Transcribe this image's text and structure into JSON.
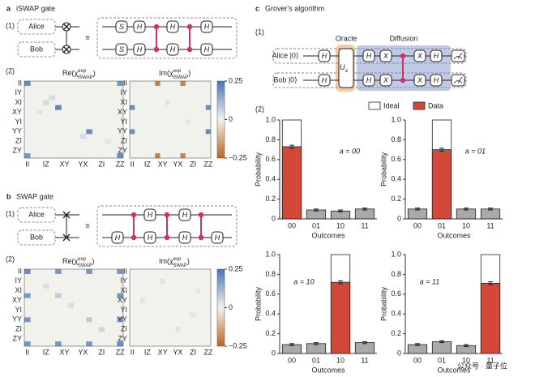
{
  "panels": [
    {
      "label": "a",
      "title": "iSWAP gate",
      "circuit": {
        "step": "(1)",
        "qubits": [
          "Alice",
          "Bob"
        ],
        "equiv": "≡",
        "top_gates": [
          "S",
          "H",
          "H",
          "H"
        ],
        "bottom_gates": [
          "S",
          "H",
          "H",
          "H"
        ]
      },
      "step2": "(2)",
      "colorbar": {
        "lim": [
          -0.25,
          0.25
        ],
        "ticks": [
          0.25,
          0,
          {
            "value": -0.25,
            "label": "−0.25"
          }
        ],
        "colors": [
          "#b8651f",
          "#f2f2ec",
          "#4a74b4"
        ]
      },
      "heatmaps": [
        {
          "type": "heatmap",
          "title": [
            "Re(χ",
            "exp",
            "iSWAP",
            ")"
          ],
          "xcategories": [
            "II",
            null,
            null,
            "IZ",
            null,
            null,
            "XY",
            null,
            null,
            "YX",
            null,
            null,
            "ZI",
            null,
            null,
            "ZZ"
          ],
          "ycategories": [
            "II",
            null,
            "IY",
            null,
            "XI",
            null,
            "XY",
            null,
            "YI",
            null,
            "YY",
            null,
            "ZI",
            null,
            "ZY",
            null
          ],
          "cells": [
            {
              "row": 0,
              "col": 0,
              "value": 0.2
            },
            {
              "row": 0,
              "col": 15,
              "value": 0.18
            },
            {
              "row": 15,
              "col": 0,
              "value": 0.18
            },
            {
              "row": 15,
              "col": 15,
              "value": 0.2
            },
            {
              "row": 5,
              "col": 5,
              "value": 0.22
            },
            {
              "row": 10,
              "col": 10,
              "value": 0.2
            },
            {
              "row": 4,
              "col": 3,
              "value": 0.05
            },
            {
              "row": 3,
              "col": 4,
              "value": 0.04
            },
            {
              "row": 6,
              "col": 2,
              "value": 0.03
            },
            {
              "row": 11,
              "col": 9,
              "value": 0.04
            },
            {
              "row": 12,
              "col": 13,
              "value": 0.03
            }
          ]
        },
        {
          "type": "heatmap",
          "title": [
            "Im(χ",
            "exp",
            "iSWAP",
            ")"
          ],
          "xcategories": [
            "II",
            null,
            null,
            "IZ",
            null,
            null,
            "XY",
            null,
            null,
            "YX",
            null,
            null,
            "ZI",
            null,
            null,
            "ZZ"
          ],
          "ycategories": [
            "II",
            null,
            "IY",
            null,
            "XI",
            null,
            "XY",
            null,
            "YI",
            null,
            "YY",
            null,
            "ZI",
            null,
            "ZY",
            null
          ],
          "cells": [
            {
              "row": 0,
              "col": 5,
              "value": -0.2
            },
            {
              "row": 0,
              "col": 10,
              "value": -0.2
            },
            {
              "row": 15,
              "col": 5,
              "value": -0.2
            },
            {
              "row": 15,
              "col": 10,
              "value": -0.2
            },
            {
              "row": 5,
              "col": 0,
              "value": 0.2
            },
            {
              "row": 10,
              "col": 0,
              "value": 0.2
            },
            {
              "row": 5,
              "col": 15,
              "value": 0.2
            },
            {
              "row": 10,
              "col": 15,
              "value": 0.2
            },
            {
              "row": 4,
              "col": 7,
              "value": 0.03
            },
            {
              "row": 8,
              "col": 11,
              "value": -0.03
            }
          ]
        }
      ]
    },
    {
      "label": "b",
      "title": "SWAP gate",
      "circuit": {
        "step": "(1)",
        "qubits": [
          "Alice",
          "Bob"
        ],
        "equiv": "≡",
        "top_gates": [
          "H",
          "H"
        ],
        "bottom_gates": [
          "H",
          "H",
          "H",
          "H"
        ]
      },
      "step2": "(2)",
      "colorbar": {
        "lim": [
          -0.25,
          0.25
        ],
        "ticks": [
          0.25,
          0,
          {
            "value": -0.25,
            "label": "−0.25"
          }
        ],
        "colors": [
          "#b8651f",
          "#f2f2ec",
          "#4a74b4"
        ]
      },
      "heatmaps": [
        {
          "type": "heatmap",
          "title": [
            "Re(χ",
            "exp",
            "SWAP",
            ")"
          ],
          "xcategories": [
            "II",
            null,
            null,
            "IZ",
            null,
            null,
            "XY",
            null,
            null,
            "YX",
            null,
            null,
            "ZI",
            null,
            null,
            "ZZ"
          ],
          "ycategories": [
            "II",
            null,
            "IY",
            null,
            "XI",
            null,
            "XY",
            null,
            "YI",
            null,
            "YY",
            null,
            "ZI",
            null,
            "ZY",
            null
          ],
          "cells": [
            {
              "row": 0,
              "col": 0,
              "value": 0.2
            },
            {
              "row": 0,
              "col": 5,
              "value": 0.18
            },
            {
              "row": 0,
              "col": 10,
              "value": 0.18
            },
            {
              "row": 0,
              "col": 15,
              "value": 0.18
            },
            {
              "row": 5,
              "col": 0,
              "value": 0.18
            },
            {
              "row": 10,
              "col": 0,
              "value": 0.18
            },
            {
              "row": 15,
              "col": 0,
              "value": 0.18
            },
            {
              "row": 15,
              "col": 15,
              "value": 0.2
            },
            {
              "row": 15,
              "col": 5,
              "value": 0.18
            },
            {
              "row": 15,
              "col": 10,
              "value": 0.18
            },
            {
              "row": 5,
              "col": 15,
              "value": 0.18
            },
            {
              "row": 10,
              "col": 15,
              "value": 0.18
            },
            {
              "row": 5,
              "col": 5,
              "value": 0.08
            },
            {
              "row": 10,
              "col": 10,
              "value": 0.08
            },
            {
              "row": 3,
              "col": 3,
              "value": 0.04
            },
            {
              "row": 7,
              "col": 7,
              "value": 0.04
            },
            {
              "row": 12,
              "col": 12,
              "value": 0.05
            }
          ]
        },
        {
          "type": "heatmap",
          "title": [
            "Im(χ",
            "exp",
            "SWAP",
            ")"
          ],
          "xcategories": [
            "II",
            null,
            null,
            "IZ",
            null,
            null,
            "XY",
            null,
            null,
            "YX",
            null,
            null,
            "ZI",
            null,
            null,
            "ZZ"
          ],
          "ycategories": [
            "II",
            null,
            "IY",
            null,
            "XI",
            null,
            "XY",
            null,
            "YI",
            null,
            "YY",
            null,
            "ZI",
            null,
            "ZY",
            null
          ],
          "cells": [
            {
              "row": 2,
              "col": 6,
              "value": 0.03
            },
            {
              "row": 6,
              "col": 2,
              "value": -0.03
            },
            {
              "row": 9,
              "col": 12,
              "value": 0.03
            },
            {
              "row": 12,
              "col": 9,
              "value": -0.03
            },
            {
              "row": 4,
              "col": 13,
              "value": 0.02
            }
          ]
        }
      ]
    },
    {
      "label": "c",
      "title": "Grover's algorithm",
      "circuit": {
        "step": "(1)",
        "qubits": [
          "Alice |0⟩",
          "Bob |0⟩"
        ],
        "oracle": "Oracle",
        "diffusion": "Diffusion",
        "init_gate": "H",
        "oracle_gate": [
          "U",
          "a"
        ],
        "diffusion_gates": [
          "H",
          "X",
          "X",
          "H"
        ]
      },
      "step2": "(2)",
      "legend": [
        {
          "name": "Ideal",
          "color": "#ffffff"
        },
        {
          "name": "Data",
          "color": "#d2493a"
        }
      ],
      "charts": [
        {
          "type": "bar",
          "annotation": "a = 00",
          "categories": [
            "00",
            "01",
            "10",
            "11"
          ],
          "ylabel": "Probability",
          "xlabel": "Outcomes",
          "ylim": [
            0,
            1
          ],
          "yticks": [
            0,
            0.2,
            0.4,
            0.6,
            0.8,
            {
              "value": 1,
              "label": "1.0"
            }
          ],
          "series": [
            {
              "color": "#ffffff",
              "values": [
                1,
                0,
                0,
                0
              ]
            },
            {
              "colors": [
                "#d2493a",
                "#a9a9a9",
                "#a9a9a9",
                "#a9a9a9"
              ],
              "values": [
                0.73,
                0.09,
                0.08,
                0.1
              ],
              "errors": [
                0.015,
                0.01,
                0.01,
                0.01
              ]
            }
          ]
        },
        {
          "type": "bar",
          "annotation": "a = 01",
          "categories": [
            "00",
            "01",
            "10",
            "11"
          ],
          "ylabel": "Probability",
          "xlabel": "Outcomes",
          "ylim": [
            0,
            1
          ],
          "yticks": [
            0,
            0.2,
            0.4,
            0.6,
            0.8,
            {
              "value": 1,
              "label": "1.0"
            }
          ],
          "series": [
            {
              "color": "#ffffff",
              "values": [
                0,
                1,
                0,
                0
              ]
            },
            {
              "colors": [
                "#a9a9a9",
                "#d2493a",
                "#a9a9a9",
                "#a9a9a9"
              ],
              "values": [
                0.1,
                0.7,
                0.1,
                0.1
              ],
              "errors": [
                0.01,
                0.015,
                0.01,
                0.01
              ]
            }
          ]
        },
        {
          "type": "bar",
          "annotation": "a = 10",
          "categories": [
            "00",
            "01",
            "10",
            "11"
          ],
          "ylabel": "Probability",
          "xlabel": "Outcomes",
          "ylim": [
            0,
            1
          ],
          "yticks": [
            0,
            0.2,
            0.4,
            0.6,
            0.8,
            {
              "value": 1,
              "label": "1.0"
            }
          ],
          "series": [
            {
              "color": "#ffffff",
              "values": [
                0,
                0,
                1,
                0
              ]
            },
            {
              "colors": [
                "#a9a9a9",
                "#a9a9a9",
                "#d2493a",
                "#a9a9a9"
              ],
              "values": [
                0.09,
                0.1,
                0.72,
                0.11
              ],
              "errors": [
                0.01,
                0.01,
                0.015,
                0.01
              ]
            }
          ]
        },
        {
          "type": "bar",
          "annotation": "a = 11",
          "categories": [
            "00",
            "01",
            "10",
            "11"
          ],
          "ylabel": "Probability",
          "xlabel": "Outcomes",
          "ylim": [
            0,
            1
          ],
          "yticks": [
            0,
            0.2,
            0.4,
            0.6,
            0.8,
            {
              "value": 1,
              "label": "1.0"
            }
          ],
          "series": [
            {
              "color": "#ffffff",
              "values": [
                0,
                0,
                0,
                1
              ]
            },
            {
              "colors": [
                "#a9a9a9",
                "#a9a9a9",
                "#a9a9a9",
                "#d2493a"
              ],
              "values": [
                0.09,
                0.12,
                0.08,
                0.71
              ],
              "errors": [
                0.01,
                0.01,
                0.01,
                0.015
              ]
            }
          ]
        }
      ]
    }
  ],
  "watermark": "公众号 · 量子位"
}
